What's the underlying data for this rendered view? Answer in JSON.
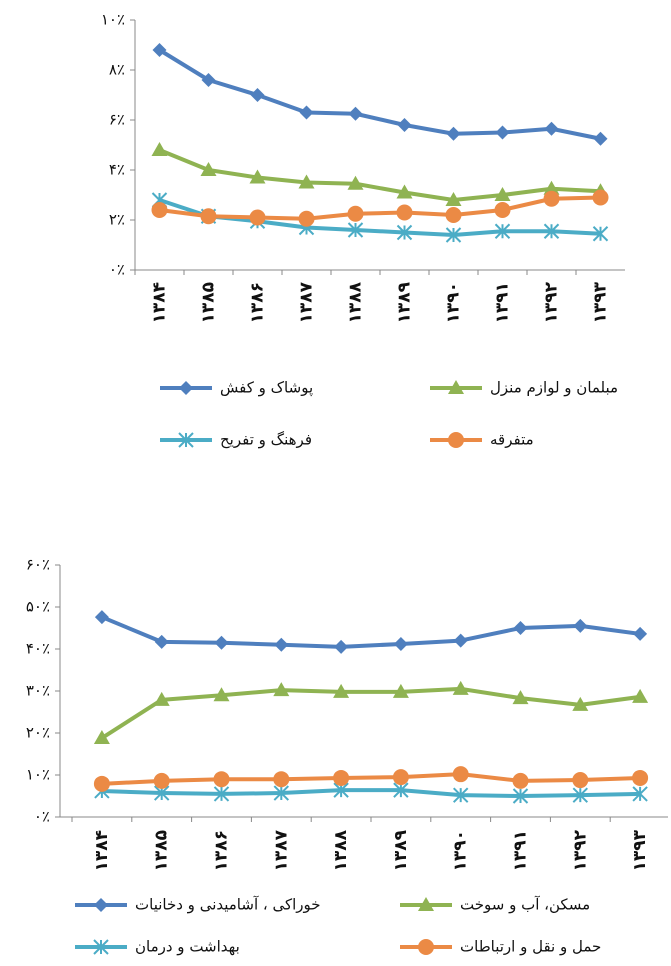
{
  "chart_data": [
    {
      "type": "line",
      "categories": [
        "۱۳۸۴",
        "۱۳۸۵",
        "۱۳۸۶",
        "۱۳۸۷",
        "۱۳۸۸",
        "۱۳۸۹",
        "۱۳۹۰",
        "۱۳۹۱",
        "۱۳۹۲",
        "۱۳۹۳"
      ],
      "ylim": [
        0,
        10
      ],
      "yticks": [
        {
          "value": 0,
          "label": "۰٪"
        },
        {
          "value": 2,
          "label": "۲٪"
        },
        {
          "value": 4,
          "label": "۴٪"
        },
        {
          "value": 6,
          "label": "۶٪"
        },
        {
          "value": 8,
          "label": "۸٪"
        },
        {
          "value": 10,
          "label": "۱۰٪"
        }
      ],
      "series": [
        {
          "name": "پوشاک و کفش",
          "color": "#4f7fbe",
          "marker": "diamond",
          "values": [
            8.8,
            7.6,
            7.0,
            6.3,
            6.25,
            5.8,
            5.45,
            5.5,
            5.65,
            5.25
          ]
        },
        {
          "name": "مبلمان و لوازم منزل",
          "color": "#8fb352",
          "marker": "triangle",
          "values": [
            4.8,
            4.0,
            3.7,
            3.5,
            3.45,
            3.1,
            2.8,
            3.0,
            3.25,
            3.15
          ]
        },
        {
          "name": "فرهنگ و تفریح",
          "color": "#4bacc6",
          "marker": "asterisk",
          "values": [
            2.8,
            2.15,
            1.95,
            1.7,
            1.6,
            1.5,
            1.4,
            1.55,
            1.55,
            1.45
          ]
        },
        {
          "name": "متفرقه",
          "color": "#eb8a45",
          "marker": "circle",
          "values": [
            2.4,
            2.15,
            2.1,
            2.05,
            2.25,
            2.3,
            2.2,
            2.4,
            2.85,
            2.9
          ]
        }
      ]
    },
    {
      "type": "line",
      "categories": [
        "۱۳۸۴",
        "۱۳۸۵",
        "۱۳۸۶",
        "۱۳۸۷",
        "۱۳۸۸",
        "۱۳۸۹",
        "۱۳۹۰",
        "۱۳۹۱",
        "۱۳۹۲",
        "۱۳۹۳"
      ],
      "ylim": [
        0,
        60
      ],
      "yticks": [
        {
          "value": 0,
          "label": "۰٪"
        },
        {
          "value": 10,
          "label": "۱۰٪"
        },
        {
          "value": 20,
          "label": "۲۰٪"
        },
        {
          "value": 30,
          "label": "۳۰٪"
        },
        {
          "value": 40,
          "label": "۴۰٪"
        },
        {
          "value": 50,
          "label": "۵۰٪"
        },
        {
          "value": 60,
          "label": "۶۰٪"
        }
      ],
      "series": [
        {
          "name": "خوراکی ، آشامیدنی و دخانیات",
          "color": "#4f7fbe",
          "marker": "diamond",
          "values": [
            47.6,
            41.7,
            41.5,
            41.0,
            40.5,
            41.2,
            42.0,
            45.0,
            45.5,
            43.6
          ]
        },
        {
          "name": "مسکن، آب و سوخت",
          "color": "#8fb352",
          "marker": "triangle",
          "values": [
            18.8,
            27.9,
            29.0,
            30.2,
            29.8,
            29.8,
            30.5,
            28.3,
            26.7,
            28.6
          ]
        },
        {
          "name": "بهداشت و درمان",
          "color": "#4bacc6",
          "marker": "asterisk",
          "values": [
            6.2,
            5.7,
            5.5,
            5.7,
            6.4,
            6.4,
            5.2,
            5.0,
            5.2,
            5.5
          ]
        },
        {
          "name": "حمل و نقل و ارتباطات",
          "color": "#eb8a45",
          "marker": "circle",
          "values": [
            7.9,
            8.6,
            9.0,
            9.0,
            9.3,
            9.5,
            10.2,
            8.6,
            8.8,
            9.3
          ]
        }
      ]
    }
  ]
}
